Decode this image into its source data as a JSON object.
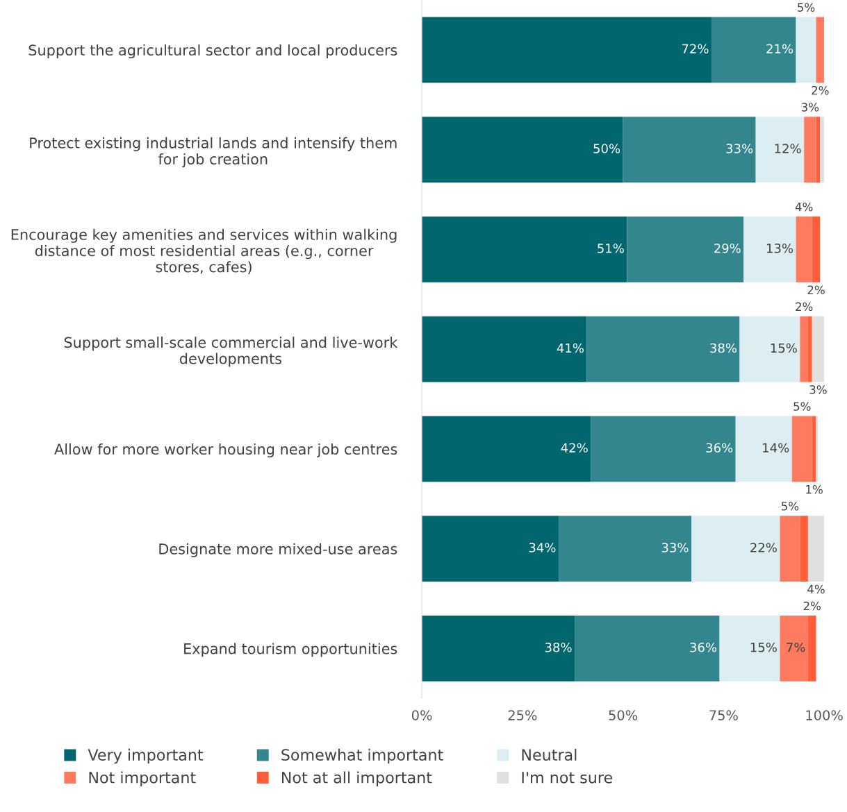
{
  "chart_data": {
    "type": "bar",
    "orientation": "horizontal",
    "stacked": true,
    "categories": [
      "Support the agricultural sector and local producers",
      "Protect existing industrial lands and intensify them\nfor job creation",
      "Encourage key amenities and services within walking\ndistance of most residential areas (e.g., corner\nstores, cafes)",
      "Support small-scale commercial and live-work\ndevelopments",
      "Allow for more worker housing near job centres",
      "Designate more mixed-use areas",
      "Expand tourism opportunities"
    ],
    "series": [
      {
        "name": "Very important",
        "color": "#02666f",
        "values": [
          72,
          50,
          51,
          41,
          42,
          34,
          38
        ],
        "value_labels": [
          "72%",
          "50%",
          "51%",
          "41%",
          "42%",
          "34%",
          "38%"
        ]
      },
      {
        "name": "Somewhat important",
        "color": "#34868e",
        "values": [
          21,
          33,
          29,
          38,
          36,
          33,
          36
        ],
        "value_labels": [
          "21%",
          "33%",
          "29%",
          "38%",
          "36%",
          "33%",
          "36%"
        ]
      },
      {
        "name": "Neutral",
        "color": "#ddeef3",
        "values": [
          5,
          12,
          13,
          15,
          14,
          22,
          15
        ],
        "value_labels": [
          "5%",
          "12%",
          "13%",
          "15%",
          "14%",
          "22%",
          "15%"
        ]
      },
      {
        "name": "Not important",
        "color": "#ff7b5f",
        "values": [
          2,
          3,
          4,
          2,
          5,
          5,
          7
        ],
        "value_labels": [
          "2%",
          "3%",
          "4%",
          "2%",
          "5%",
          "5%",
          "7%"
        ]
      },
      {
        "name": "Not at all important",
        "color": "#ff5e3a",
        "values": [
          null,
          1,
          2,
          1,
          1,
          2,
          2
        ],
        "value_labels": [
          null,
          null,
          "2%",
          null,
          "1%",
          null,
          "2%"
        ]
      },
      {
        "name": "I'm not sure",
        "color": "#e0e0e0",
        "values": [
          0,
          1,
          0,
          3,
          0.5,
          4,
          0
        ],
        "value_labels": [
          null,
          null,
          null,
          "3%",
          null,
          "4%",
          null
        ]
      }
    ],
    "xlim": [
      0,
      100
    ],
    "xticks": [
      {
        "value": 0,
        "label": "0%"
      },
      {
        "value": 25,
        "label": "25%"
      },
      {
        "value": 50,
        "label": "50%"
      },
      {
        "value": 75,
        "label": "75%"
      },
      {
        "value": 100,
        "label": "100%"
      }
    ],
    "grid": false,
    "legend": "bottom"
  }
}
